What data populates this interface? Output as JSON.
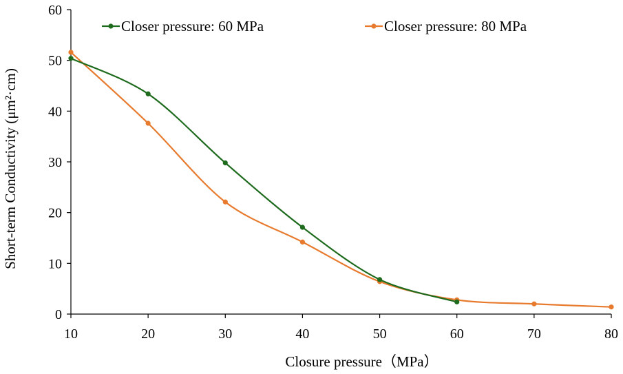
{
  "chart_data": {
    "type": "line",
    "title": "",
    "xlabel": "Closure pressure（MPa）",
    "ylabel": "Short-term Conductivity (μm²·cm)",
    "xlim": [
      10,
      80
    ],
    "ylim": [
      0,
      60
    ],
    "x_ticks": [
      10,
      20,
      30,
      40,
      50,
      60,
      70,
      80
    ],
    "y_ticks": [
      0,
      10,
      20,
      30,
      40,
      50,
      60
    ],
    "x_tick_labels": [
      "10",
      "20",
      "30",
      "40",
      "50",
      "60",
      "70",
      "80"
    ],
    "y_tick_labels": [
      "0",
      "10",
      "20",
      "30",
      "40",
      "50",
      "60"
    ],
    "grid": false,
    "legend_position": "top",
    "smooth": true,
    "series": [
      {
        "name": "Closer pressure: 60 MPa",
        "color": "#1e6b1e",
        "x": [
          10,
          20,
          30,
          40,
          50,
          60
        ],
        "values": [
          50.4,
          43.4,
          29.8,
          17.1,
          6.8,
          2.4
        ]
      },
      {
        "name": "Closer pressure: 80 MPa",
        "color": "#e87a2e",
        "x": [
          10,
          20,
          30,
          40,
          50,
          60,
          70,
          80
        ],
        "values": [
          51.6,
          37.6,
          22.1,
          14.2,
          6.4,
          2.8,
          2.0,
          1.4
        ]
      }
    ]
  }
}
